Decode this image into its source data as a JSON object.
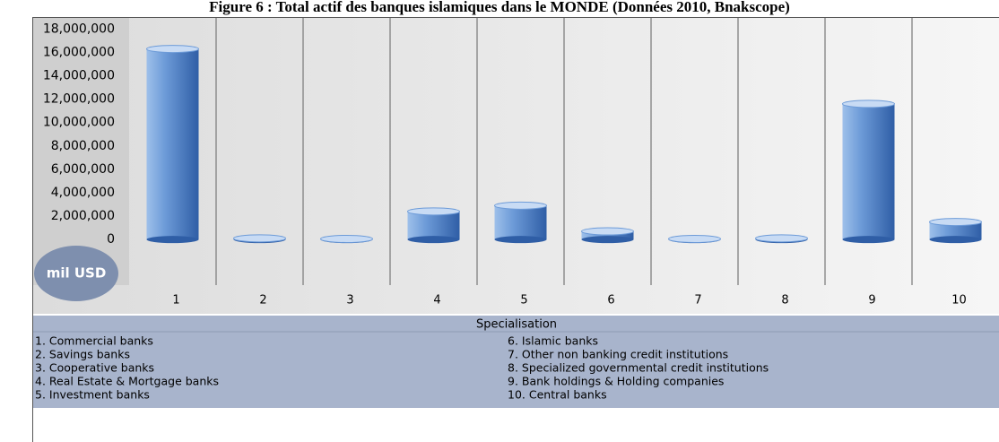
{
  "chart_data": {
    "type": "bar",
    "title": "Figure 6 : Total actif des banques islamiques dans le MONDE  (Données 2010, Bnakscope)",
    "unit_label": "mil USD",
    "categories": [
      "1",
      "2",
      "3",
      "4",
      "5",
      "6",
      "7",
      "8",
      "9",
      "10"
    ],
    "values": [
      16300000,
      100000,
      50000,
      2400000,
      2900000,
      700000,
      50000,
      100000,
      11600000,
      1500000
    ],
    "color": "#3e6fb5",
    "ylim": [
      -3900000,
      18800000
    ],
    "yticks": [
      0,
      {
        "value": 2000000,
        "label": "2,000,000"
      },
      {
        "value": 4000000,
        "label": "4,000,000"
      },
      {
        "value": 6000000,
        "label": "6,000,000"
      },
      {
        "value": 8000000,
        "label": "8,000,000"
      },
      {
        "value": 10000000,
        "label": "10,000,000"
      },
      {
        "value": 12000000,
        "label": "12,000,000"
      },
      {
        "value": 14000000,
        "label": "14,000,000"
      },
      {
        "value": 16000000,
        "label": "16,000,000"
      },
      {
        "value": 18000000,
        "label": "18,000,000"
      }
    ],
    "legend": {
      "title": "Specialisation",
      "items": [
        "1. Commercial banks",
        "2. Savings banks",
        "3. Cooperative banks",
        "4. Real Estate & Mortgage banks",
        "5. Investment banks",
        "6. Islamic banks",
        "7. Other non banking credit institutions",
        "8. Specialized governmental credit institutions",
        "9. Bank holdings & Holding companies",
        "10. Central banks"
      ]
    }
  }
}
